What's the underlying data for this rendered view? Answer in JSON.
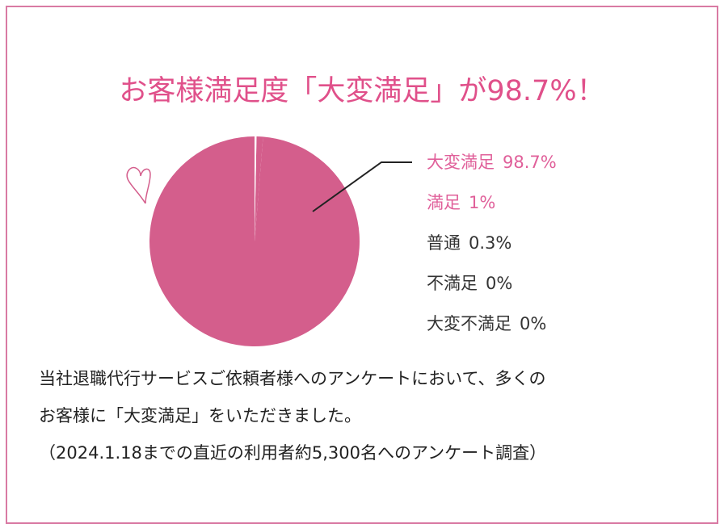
{
  "chart_data": {
    "type": "pie",
    "title": "お客様満足度「大変満足」が98.7%！",
    "categories": [
      "大変満足",
      "満足",
      "普通",
      "不満足",
      "大変不満足"
    ],
    "values": [
      98.7,
      1,
      0.3,
      0,
      0
    ],
    "value_labels": [
      "98.7%",
      "1%",
      "0.3%",
      "0%",
      "0%"
    ],
    "colors": [
      "#d45e8c",
      "#d45e8c",
      "#ffffff",
      "#ffffff",
      "#ffffff"
    ],
    "label_colors": [
      "#e0609a",
      "#e0609a",
      "#333333",
      "#333333",
      "#333333"
    ],
    "direction": "counterclockwise"
  },
  "notes": [
    "当社退職代行サービスご依頼者様へのアンケートにおいて、多くの",
    "お客様に「大変満足」をいただきました。",
    "（2024.1.18までの直近の利用者約5,300名へのアンケート調査）"
  ]
}
